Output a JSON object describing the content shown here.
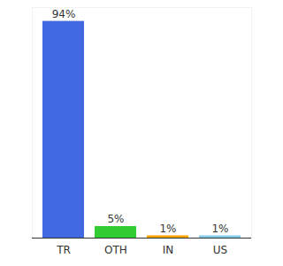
{
  "chart_data": {
    "type": "bar",
    "categories": [
      "TR",
      "OTH",
      "IN",
      "US"
    ],
    "values": [
      94,
      5,
      1,
      1
    ],
    "value_labels": [
      "94%",
      "5%",
      "1%",
      "1%"
    ],
    "colors": [
      "#4169e1",
      "#32cd32",
      "#ffa500",
      "#87ceeb"
    ],
    "ylim": [
      0,
      100
    ],
    "yticks": [],
    "grid": false,
    "data_labels": true,
    "tick_labels": "x"
  }
}
